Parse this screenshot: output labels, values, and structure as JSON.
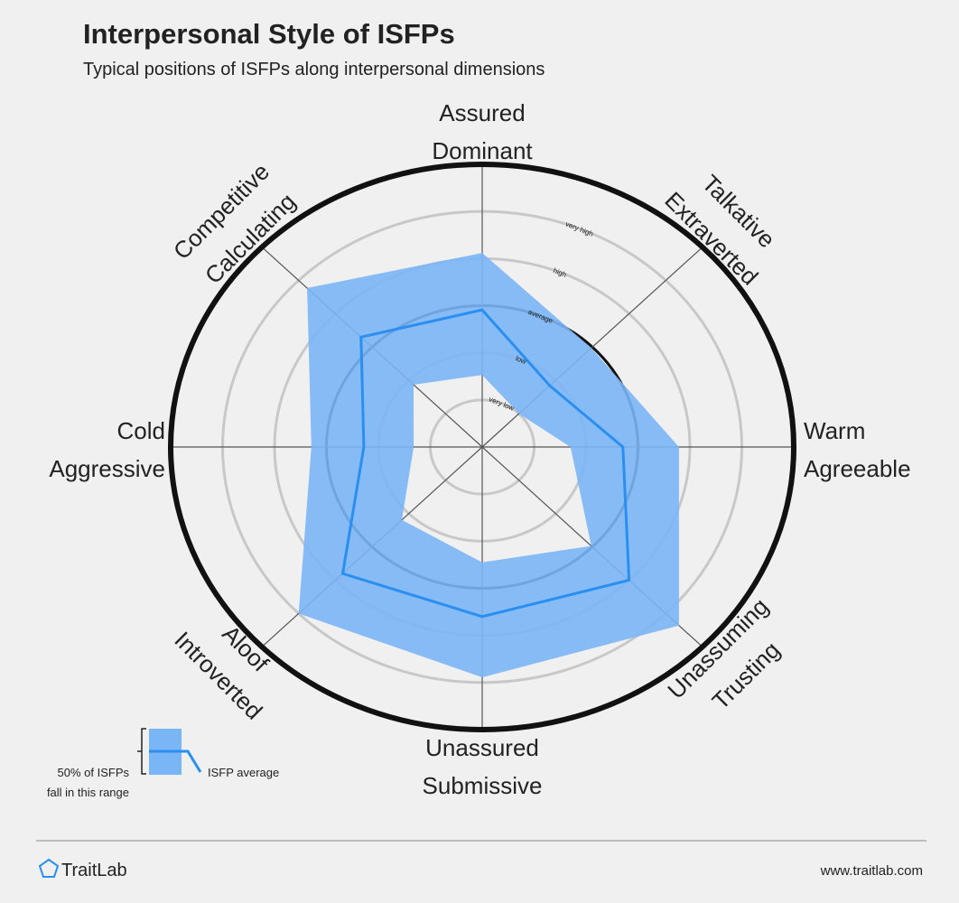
{
  "chart_data": {
    "type": "radar",
    "title": "Interpersonal Style of ISFPs",
    "subtitle": "Typical positions of ISFPs along interpersonal dimensions",
    "categories": [
      [
        "Assured",
        "Dominant"
      ],
      [
        "Talkative",
        "Extraverted"
      ],
      [
        "Warm",
        "Agreeable"
      ],
      [
        "Unassuming",
        "Trusting"
      ],
      [
        "Unassured",
        "Submissive"
      ],
      [
        "Aloof",
        "Introverted"
      ],
      [
        "Cold",
        "Aggressive"
      ],
      [
        "Competitive",
        "Calculating"
      ]
    ],
    "rlim": [
      0,
      6
    ],
    "rticks": [
      {
        "value": 1,
        "label": "very low"
      },
      {
        "value": 2,
        "label": "low"
      },
      {
        "value": 3,
        "label": "average"
      },
      {
        "value": 4,
        "label": "high"
      },
      {
        "value": 5,
        "label": "very high"
      }
    ],
    "range": {
      "name": [
        "50% of ISFPs",
        "fall in this range"
      ],
      "color": "#7ab5f5",
      "low": [
        1.53,
        1.0,
        1.7,
        2.97,
        2.45,
        2.19,
        1.32,
        1.87
      ],
      "high": [
        4.12,
        2.97,
        3.79,
        5.36,
        4.89,
        5.0,
        3.29,
        4.77
      ]
    },
    "series": [
      {
        "name": "ISFP average",
        "color": "#2a8ff0",
        "values": [
          2.91,
          1.84,
          2.71,
          4.0,
          3.6,
          3.8,
          2.28,
          3.3
        ]
      }
    ],
    "brand": "TraitLab",
    "url": "www.traitlab.com"
  }
}
